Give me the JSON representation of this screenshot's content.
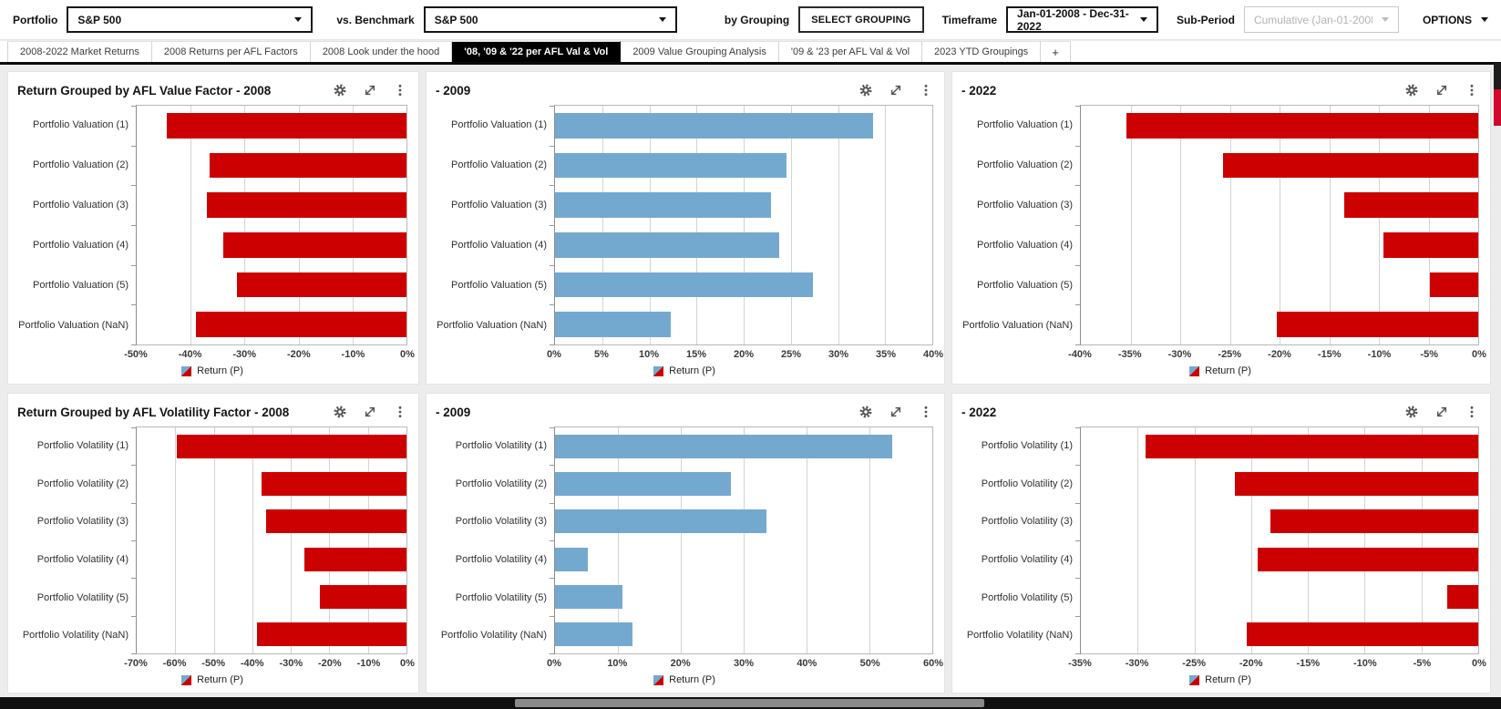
{
  "toolbar": {
    "portfolio_label": "Portfolio",
    "portfolio_value": "S&P 500",
    "benchmark_label": "vs. Benchmark",
    "benchmark_value": "S&P 500",
    "grouping_label": "by Grouping",
    "grouping_button": "SELECT GROUPING",
    "timeframe_label": "Timeframe",
    "timeframe_value": "Jan-01-2008 - Dec-31-2022",
    "subperiod_label": "Sub-Period",
    "subperiod_value": "Cumulative (Jan-01-2008 ...",
    "options_label": "OPTIONS"
  },
  "tabs": {
    "items": [
      {
        "label": "2008-2022 Market Returns",
        "active": false
      },
      {
        "label": "2008 Returns per AFL Factors",
        "active": false
      },
      {
        "label": "2008 Look under the hood",
        "active": false
      },
      {
        "label": "'08, '09 & '22 per AFL Val & Vol",
        "active": true
      },
      {
        "label": "2009 Value Grouping Analysis",
        "active": false
      },
      {
        "label": "'09 & '23 per AFL Val & Vol",
        "active": false
      },
      {
        "label": "2023 YTD Groupings",
        "active": false
      }
    ],
    "add_tab": "+"
  },
  "icons": {
    "panel_icons": [
      "gear-icon",
      "expand-icon",
      "kebab-menu-icon"
    ],
    "dropdown_caret": "caret-down-icon"
  },
  "colors": {
    "negative_bar": "#cc0000",
    "positive_bar": "#74a9cf",
    "active_tab_bg": "#000000",
    "vertical_scroll_thumb": "#cf0a2c",
    "horizontal_scroll_track": "#101010"
  },
  "chart_data": [
    {
      "type": "bar",
      "orientation": "horizontal",
      "title": "Return Grouped by AFL Value Factor - 2008",
      "categories": [
        "Portfolio Valuation (1)",
        "Portfolio Valuation (2)",
        "Portfolio Valuation (3)",
        "Portfolio Valuation (4)",
        "Portfolio Valuation (5)",
        "Portfolio Valuation (NaN)"
      ],
      "values": [
        -44.5,
        -36.5,
        -37.0,
        -34.0,
        -31.5,
        -39.0
      ],
      "unit": "%",
      "xlim": [
        -50,
        0
      ],
      "tick_step": 10,
      "bar_color": "#cc0000",
      "grid": true,
      "legend": "Return (P)",
      "legend_position": "bottom"
    },
    {
      "type": "bar",
      "orientation": "horizontal",
      "title": "- 2009",
      "categories": [
        "Portfolio Valuation (1)",
        "Portfolio Valuation (2)",
        "Portfolio Valuation (3)",
        "Portfolio Valuation (4)",
        "Portfolio Valuation (5)",
        "Portfolio Valuation (NaN)"
      ],
      "values": [
        33.7,
        24.5,
        22.9,
        23.8,
        27.3,
        12.3
      ],
      "unit": "%",
      "xlim": [
        0,
        40
      ],
      "tick_step": 5,
      "bar_color": "#74a9cf",
      "grid": true,
      "legend": "Return (P)",
      "legend_position": "bottom"
    },
    {
      "type": "bar",
      "orientation": "horizontal",
      "title": "- 2022",
      "categories": [
        "Portfolio Valuation (1)",
        "Portfolio Valuation (2)",
        "Portfolio Valuation (3)",
        "Portfolio Valuation (4)",
        "Portfolio Valuation (5)",
        "Portfolio Valuation (NaN)"
      ],
      "values": [
        -35.4,
        -25.7,
        -13.5,
        -9.5,
        -4.9,
        -20.3
      ],
      "unit": "%",
      "xlim": [
        -40,
        0
      ],
      "tick_step": 5,
      "bar_color": "#cc0000",
      "grid": true,
      "legend": "Return (P)",
      "legend_position": "bottom"
    },
    {
      "type": "bar",
      "orientation": "horizontal",
      "title": "Return Grouped by AFL Volatility Factor - 2008",
      "categories": [
        "Portfolio Volatility (1)",
        "Portfolio Volatility (2)",
        "Portfolio Volatility (3)",
        "Portfolio Volatility (4)",
        "Portfolio Volatility (5)",
        "Portfolio Volatility (NaN)"
      ],
      "values": [
        -59.5,
        -37.7,
        -36.4,
        -26.4,
        -22.5,
        -38.8
      ],
      "unit": "%",
      "xlim": [
        -70,
        0
      ],
      "tick_step": 10,
      "bar_color": "#cc0000",
      "grid": true,
      "legend": "Return (P)",
      "legend_position": "bottom"
    },
    {
      "type": "bar",
      "orientation": "horizontal",
      "title": "- 2009",
      "categories": [
        "Portfolio Volatility (1)",
        "Portfolio Volatility (2)",
        "Portfolio Volatility (3)",
        "Portfolio Volatility (4)",
        "Portfolio Volatility (5)",
        "Portfolio Volatility (NaN)"
      ],
      "values": [
        53.6,
        28.0,
        33.6,
        5.2,
        10.7,
        12.3
      ],
      "unit": "%",
      "xlim": [
        0,
        60
      ],
      "tick_step": 10,
      "bar_color": "#74a9cf",
      "grid": true,
      "legend": "Return (P)",
      "legend_position": "bottom"
    },
    {
      "type": "bar",
      "orientation": "horizontal",
      "title": "- 2022",
      "categories": [
        "Portfolio Volatility (1)",
        "Portfolio Volatility (2)",
        "Portfolio Volatility (3)",
        "Portfolio Volatility (4)",
        "Portfolio Volatility (5)",
        "Portfolio Volatility (NaN)"
      ],
      "values": [
        -29.3,
        -21.4,
        -18.3,
        -19.4,
        -2.7,
        -20.4
      ],
      "unit": "%",
      "xlim": [
        -35,
        0
      ],
      "tick_step": 5,
      "bar_color": "#cc0000",
      "grid": true,
      "legend": "Return (P)",
      "legend_position": "bottom"
    }
  ]
}
